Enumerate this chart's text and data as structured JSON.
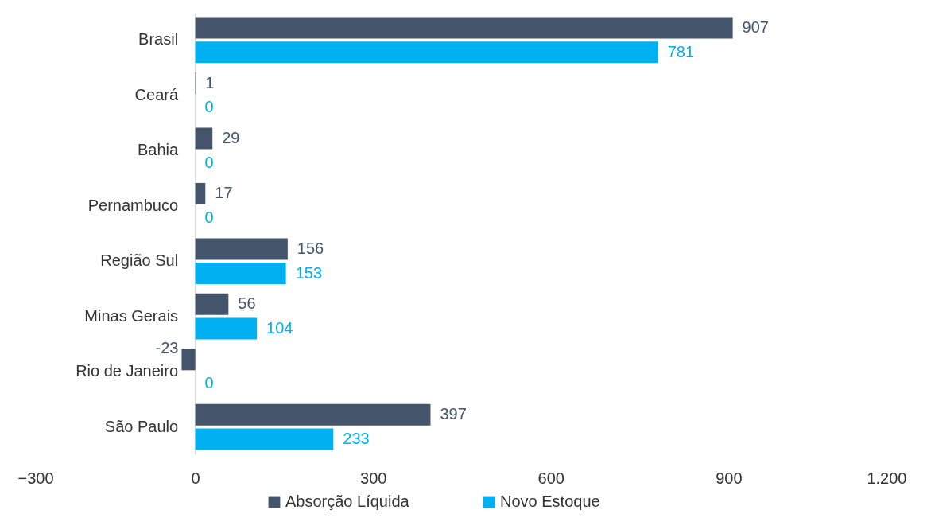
{
  "chart_data": {
    "type": "bar",
    "orientation": "horizontal",
    "categories": [
      "Brasil",
      "Ceará",
      "Bahia",
      "Pernambuco",
      "Região Sul",
      "Minas Gerais",
      "Rio de Janeiro",
      "São Paulo"
    ],
    "series": [
      {
        "name": "Absorção Líquida",
        "color": "#44546a",
        "values": [
          907,
          1,
          29,
          17,
          156,
          56,
          -23,
          397
        ]
      },
      {
        "name": "Novo Estoque",
        "color": "#00b0f0",
        "values": [
          781,
          0,
          0,
          0,
          153,
          104,
          0,
          233
        ]
      }
    ],
    "xlim": [
      -300,
      1200
    ],
    "xticks": [
      -300,
      0,
      300,
      600,
      900,
      {
        "value": 1200,
        "label": "1.200"
      }
    ],
    "grid": false,
    "legend": "bottom",
    "data_labels": true
  }
}
